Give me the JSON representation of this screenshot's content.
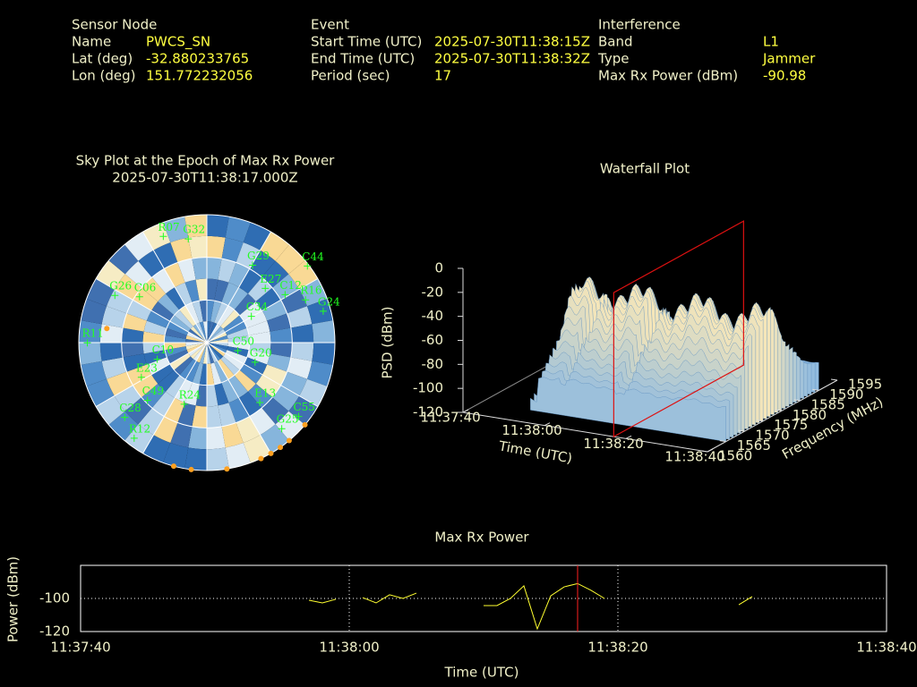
{
  "panels": [
    {
      "heading": "Sensor Node",
      "rows": [
        [
          "Name",
          "PWCS_SN"
        ],
        [
          "Lat (deg)",
          "-32.880233765"
        ],
        [
          "Lon (deg)",
          "151.772232056"
        ]
      ]
    },
    {
      "heading": "Event",
      "rows": [
        [
          "Start Time (UTC)",
          "2025-07-30T11:38:15Z"
        ],
        [
          "End Time (UTC)",
          "2025-07-30T11:38:32Z"
        ],
        [
          "Period (sec)",
          "17"
        ]
      ]
    },
    {
      "heading": "Interference",
      "rows": [
        [
          "Band",
          "L1"
        ],
        [
          "Type",
          "Jammer"
        ],
        [
          "Max Rx Power (dBm)",
          "-90.98"
        ]
      ]
    }
  ],
  "chart_data": [
    {
      "type": "skyplot",
      "title": [
        "Sky Plot at the Epoch of Max Rx Power",
        "2025-07-30T11:38:17.000Z"
      ],
      "color": "#22ff22",
      "rings": [
        0,
        30,
        60
      ],
      "satellites": [
        {
          "name": "R07",
          "az": 337,
          "el": 2
        },
        {
          "name": "G32",
          "az": 348,
          "el": 9
        },
        {
          "name": "G29",
          "az": 25,
          "el": 23
        },
        {
          "name": "C44",
          "az": 48,
          "el": 0
        },
        {
          "name": "E27",
          "az": 40,
          "el": 32
        },
        {
          "name": "C12",
          "az": 52,
          "el": 25
        },
        {
          "name": "R16",
          "az": 61,
          "el": 15
        },
        {
          "name": "G24",
          "az": 70,
          "el": 7
        },
        {
          "name": "C34",
          "az": 48,
          "el": 53
        },
        {
          "name": "C06",
          "az": 307,
          "el": 26
        },
        {
          "name": "G26",
          "az": 300,
          "el": 11
        },
        {
          "name": "R11",
          "az": 274,
          "el": 2
        },
        {
          "name": "C10",
          "az": 262,
          "el": 51
        },
        {
          "name": "E23",
          "az": 250,
          "el": 37
        },
        {
          "name": "C49",
          "az": 233,
          "el": 33
        },
        {
          "name": "C28",
          "az": 233,
          "el": 13
        },
        {
          "name": "R12",
          "az": 222,
          "el": 8
        },
        {
          "name": "C50",
          "az": 88,
          "el": 72
        },
        {
          "name": "G20",
          "az": 104,
          "el": 59
        },
        {
          "name": "E13",
          "az": 137,
          "el": 41
        },
        {
          "name": "C55",
          "az": 127,
          "el": 14
        },
        {
          "name": "G25",
          "az": 138,
          "el": 17
        },
        {
          "name": "R24",
          "az": 208,
          "el": 48
        }
      ],
      "markers": {
        "color": "#ffa020",
        "az": [
          195,
          187,
          171,
          155,
          150,
          145,
          140,
          130,
          278
        ],
        "el": [
          0,
          0,
          0,
          0,
          0,
          0,
          0,
          0,
          19
        ]
      }
    },
    {
      "type": "surface3d",
      "title": "Waterfall Plot",
      "xlabel": "Time (UTC)",
      "ylabel": "Frequency (MHz)",
      "zlabel": "PSD (dBm)",
      "xlim": [
        "11:37:40",
        "11:38:40"
      ],
      "xticks": [
        "11:37:40",
        "11:38:00",
        "11:38:20",
        "11:38:40"
      ],
      "ylim": [
        1560,
        1595
      ],
      "yticks": [
        1560,
        1565,
        1570,
        1575,
        1580,
        1585,
        1590,
        1595
      ],
      "zlim": [
        -120,
        0
      ],
      "zticks": [
        0,
        -20,
        -40,
        -60,
        -80,
        -100,
        -120
      ],
      "marker_time": "11:38:17",
      "marker_color": "#dd1111"
    },
    {
      "type": "line",
      "title": "Max Rx Power",
      "xlabel": "Time (UTC)",
      "ylabel": "Power (dBm)",
      "x": [
        "11:37:57",
        "11:37:58",
        "11:37:59",
        "11:38:00",
        "11:38:01",
        "11:38:02",
        "11:38:03",
        "11:38:04",
        "11:38:05",
        "11:38:06",
        "11:38:10",
        "11:38:11",
        "11:38:12",
        "11:38:13",
        "11:38:14",
        "11:38:15",
        "11:38:16",
        "11:38:17",
        "11:38:18",
        "11:38:19",
        "11:38:20",
        "11:38:29",
        "11:38:30"
      ],
      "series": [
        {
          "color": "#ffff30",
          "values": [
            -101.1,
            -102.7,
            -100.5,
            null,
            -99.5,
            -102.7,
            -97.8,
            -100,
            -96.8,
            null,
            -104.3,
            -104.3,
            -100,
            -92.4,
            -118.4,
            -98.4,
            -93,
            -91,
            -95.1,
            -100,
            null,
            -103.8,
            -98.9
          ]
        }
      ],
      "xlim": [
        "11:37:40",
        "11:38:40"
      ],
      "xticks": [
        "11:37:40",
        "11:38:00",
        "11:38:20",
        "11:38:40"
      ],
      "ylim": [
        -120,
        -80
      ],
      "yticks": [
        -100,
        -120
      ],
      "grid": true,
      "marker_time": "11:38:17",
      "marker_color": "#ff2020"
    }
  ]
}
